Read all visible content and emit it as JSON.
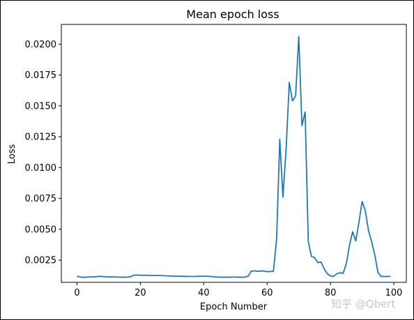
{
  "chart_data": {
    "type": "line",
    "title": "Mean epoch loss",
    "xlabel": "Epoch Number",
    "ylabel": "Loss",
    "xlim": [
      -4.95,
      103.95
    ],
    "ylim": [
      0.0007,
      0.0216
    ],
    "xticks": [
      0,
      20,
      40,
      60,
      80,
      100
    ],
    "yticks": [
      0.0025,
      0.005,
      0.0075,
      0.01,
      0.0125,
      0.015,
      0.0175,
      0.02
    ],
    "ytick_labels": [
      "0.0025",
      "0.0050",
      "0.0075",
      "0.0100",
      "0.0125",
      "0.0150",
      "0.0175",
      "0.0200"
    ],
    "grid": false,
    "color": "#1f77b4",
    "series": [
      {
        "x": [
          0,
          1,
          2,
          3,
          4,
          5,
          6,
          7,
          8,
          9,
          10,
          11,
          12,
          13,
          14,
          15,
          16,
          17,
          18,
          19,
          20,
          21,
          22,
          23,
          24,
          25,
          26,
          27,
          28,
          29,
          30,
          31,
          32,
          33,
          34,
          35,
          36,
          37,
          38,
          39,
          40,
          41,
          42,
          43,
          44,
          45,
          46,
          47,
          48,
          49,
          50,
          51,
          52,
          53,
          54,
          55,
          56,
          57,
          58,
          59,
          60,
          61,
          62,
          63,
          64,
          65,
          66,
          67,
          68,
          69,
          70,
          71,
          72,
          73,
          74,
          75,
          76,
          77,
          78,
          79,
          80,
          81,
          82,
          83,
          84,
          85,
          86,
          87,
          88,
          89,
          90,
          91,
          92,
          93,
          94,
          95,
          96,
          97,
          98,
          99
        ],
        "y": [
          0.0012,
          0.00113,
          0.00111,
          0.00112,
          0.00114,
          0.00114,
          0.00116,
          0.00119,
          0.00117,
          0.00115,
          0.00114,
          0.00114,
          0.00113,
          0.00113,
          0.00112,
          0.00112,
          0.00113,
          0.00116,
          0.00128,
          0.0013,
          0.00128,
          0.00127,
          0.00127,
          0.00126,
          0.00126,
          0.00126,
          0.00125,
          0.00125,
          0.00123,
          0.00122,
          0.00121,
          0.0012,
          0.0012,
          0.00119,
          0.00119,
          0.00118,
          0.00118,
          0.00118,
          0.00119,
          0.0012,
          0.0012,
          0.00119,
          0.00118,
          0.00116,
          0.00114,
          0.00112,
          0.00112,
          0.00112,
          0.00112,
          0.00113,
          0.00113,
          0.00112,
          0.00112,
          0.00113,
          0.0012,
          0.0016,
          0.00163,
          0.0016,
          0.00162,
          0.00162,
          0.00157,
          0.00158,
          0.0016,
          0.0042,
          0.0123,
          0.0076,
          0.0115,
          0.0169,
          0.0154,
          0.0158,
          0.0206,
          0.0134,
          0.0145,
          0.004,
          0.0028,
          0.0027,
          0.0023,
          0.00235,
          0.0018,
          0.0014,
          0.00122,
          0.00118,
          0.0014,
          0.00148,
          0.00143,
          0.0022,
          0.0037,
          0.0048,
          0.00405,
          0.0056,
          0.00725,
          0.0065,
          0.0049,
          0.004,
          0.0029,
          0.0015,
          0.00118,
          0.00118,
          0.00118,
          0.00118
        ]
      }
    ]
  },
  "watermark": "知乎 @Qbert"
}
